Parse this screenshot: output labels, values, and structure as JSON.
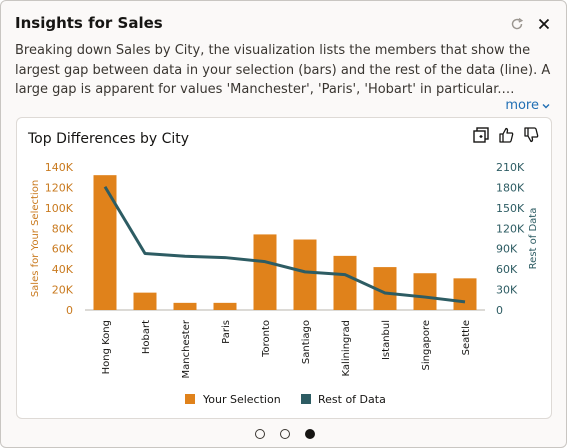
{
  "panel": {
    "title": "Insights for Sales",
    "description": "Breaking down Sales by City, the visualization lists the members that show the largest gap between data in your selection (bars) and the rest of the data (line). A large gap is apparent for values 'Manchester', 'Paris', 'Hobart' in particular.…",
    "more_label": "more",
    "refresh_icon": "refresh-icon",
    "close_icon": "close-icon"
  },
  "card": {
    "title": "Top Differences by City",
    "tools": [
      "add-to-canvas-icon",
      "thumbs-up-icon",
      "thumbs-down-icon"
    ]
  },
  "pagination": {
    "count": 3,
    "active_index": 2
  },
  "colors": {
    "bar": "#e0821b",
    "line": "#2d5c63",
    "left_axis": "#c97a1f",
    "right_axis": "#2d5c63"
  },
  "chart_data": {
    "type": "bar",
    "categories": [
      "Hong Kong",
      "Hobart",
      "Manchester",
      "Paris",
      "Toronto",
      "Santiago",
      "Kaliningrad",
      "Istanbul",
      "Singapore",
      "Seattle"
    ],
    "series": [
      {
        "name": "Your Selection",
        "type": "bar",
        "axis": "left",
        "values": [
          132000,
          17000,
          7000,
          7000,
          74000,
          69000,
          53000,
          42000,
          36000,
          31000
        ]
      },
      {
        "name": "Rest of Data",
        "type": "line",
        "axis": "right",
        "values": [
          181000,
          83000,
          79000,
          77000,
          71000,
          56000,
          52000,
          25000,
          19000,
          12000
        ]
      }
    ],
    "ylabel_left": "Sales for Your Selection",
    "ylabel_right": "Rest of Data",
    "ylim_left": [
      0,
      140000
    ],
    "ylim_right": [
      0,
      210000
    ],
    "yticks_left": [
      "0",
      "20K",
      "40K",
      "60K",
      "80K",
      "100K",
      "120K",
      "140K"
    ],
    "yticks_right": [
      "0",
      "30K",
      "60K",
      "90K",
      "120K",
      "150K",
      "180K",
      "210K"
    ],
    "legend_position": "bottom"
  }
}
